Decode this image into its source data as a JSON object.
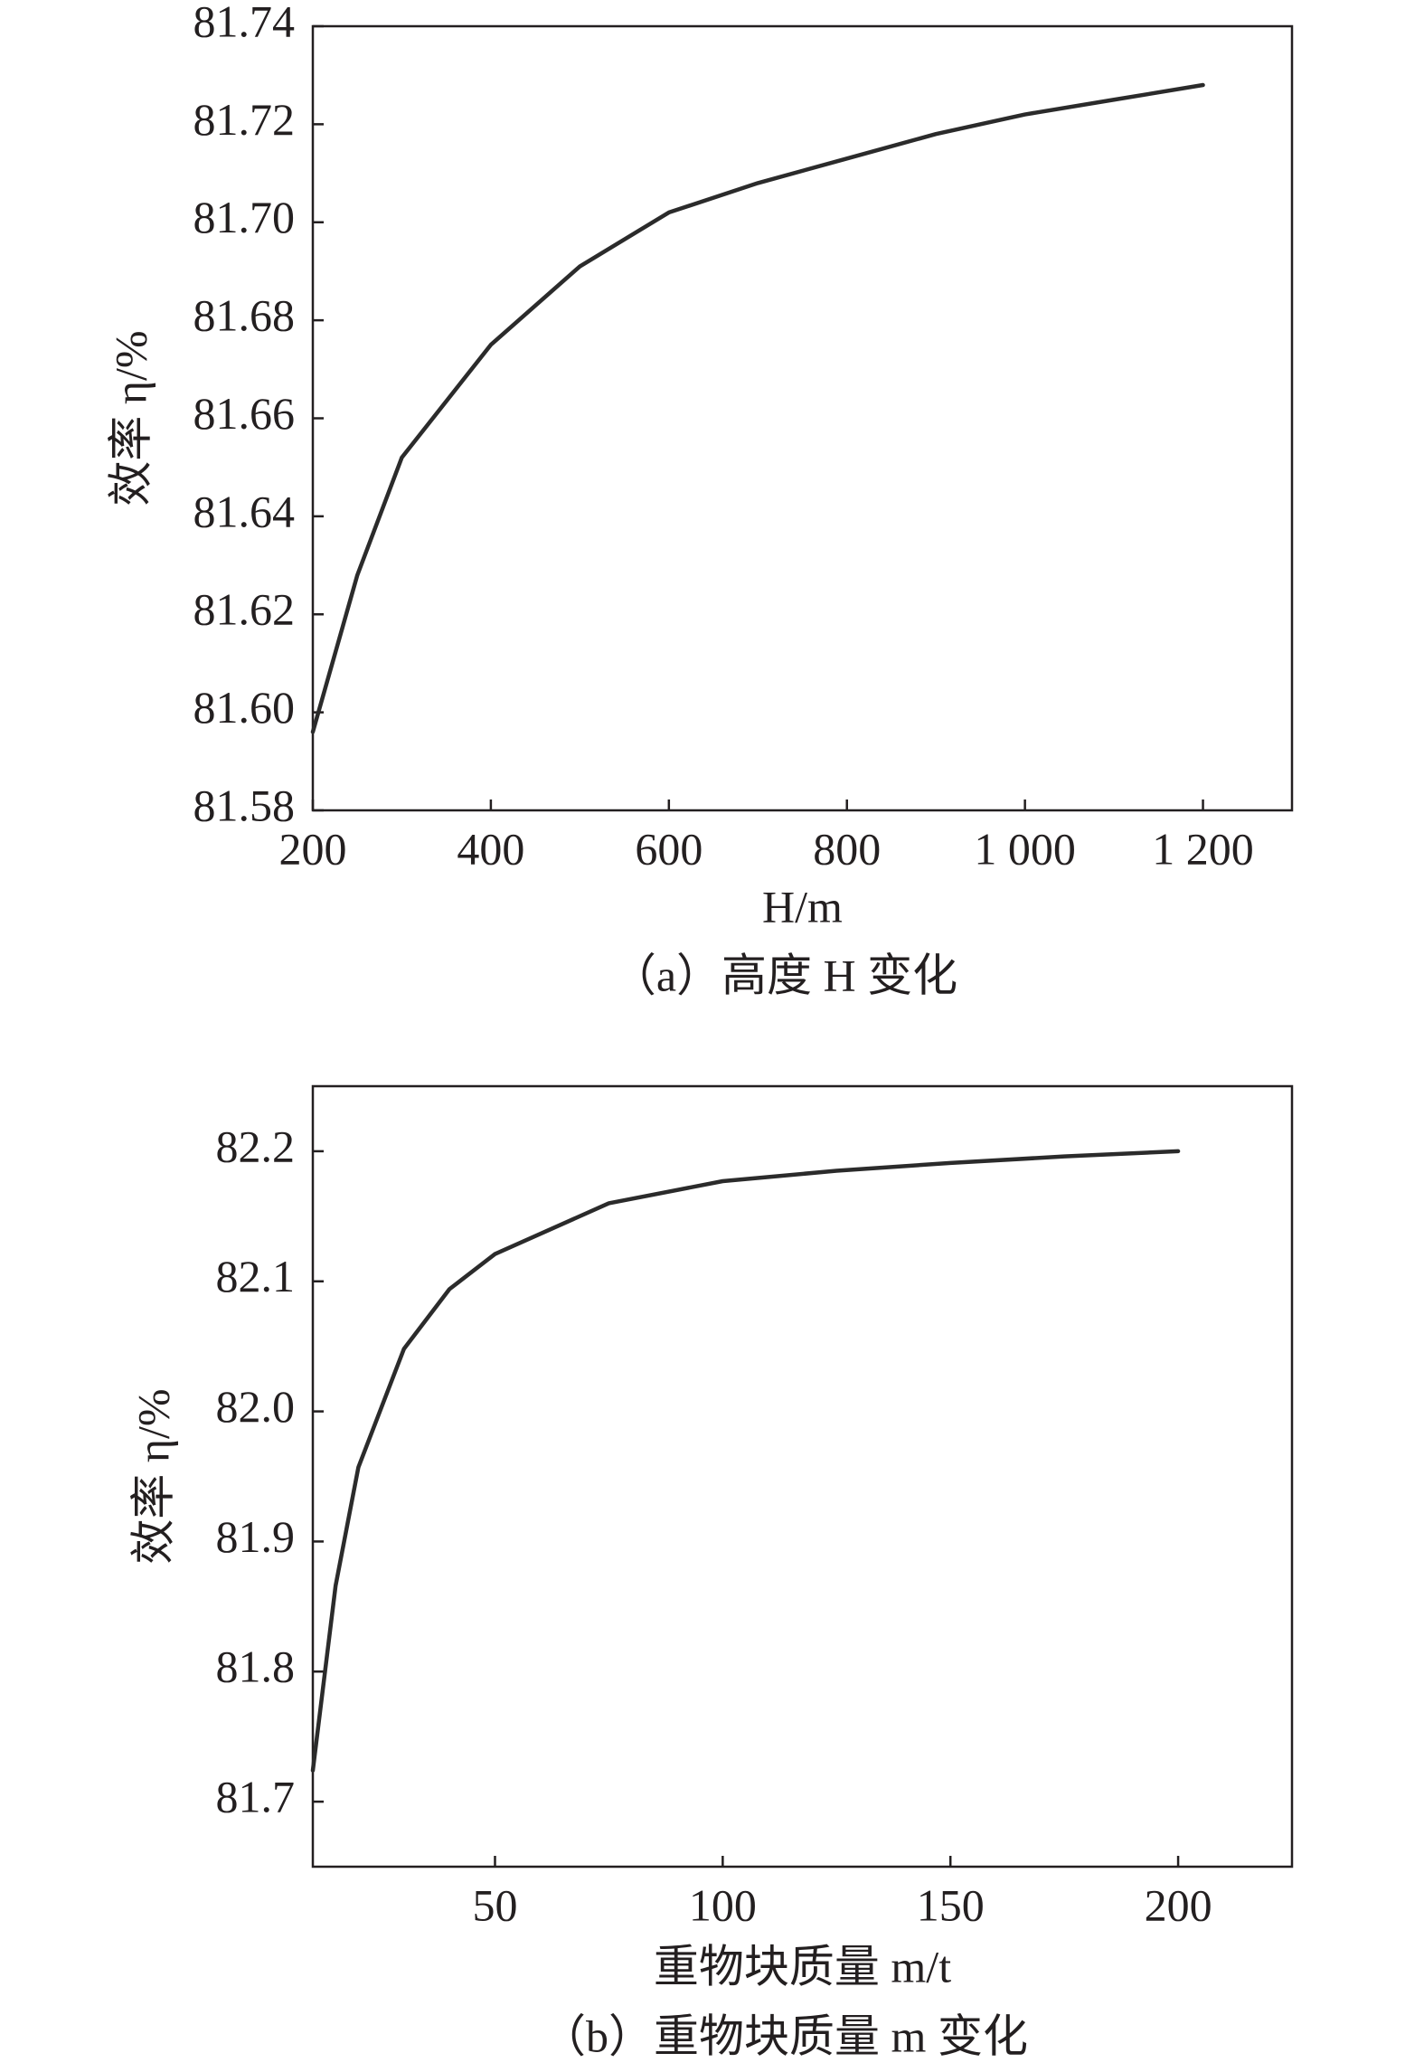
{
  "chart_data": [
    {
      "type": "line",
      "x_label": "H/m",
      "y_label": "效率 η/%",
      "caption": "（a）高度 H 变化",
      "x": [
        200,
        250,
        300,
        400,
        500,
        600,
        700,
        800,
        900,
        1000,
        1100,
        1200
      ],
      "series": [
        {
          "color": "#2b2b2b",
          "values": [
            81.596,
            81.628,
            81.652,
            81.675,
            81.691,
            81.702,
            81.708,
            81.713,
            81.718,
            81.722,
            81.725,
            81.728
          ]
        }
      ],
      "xlim": [
        200,
        1300
      ],
      "xticks": [
        200,
        400,
        600,
        800,
        {
          "value": 1000,
          "label": "1 000"
        },
        {
          "value": 1200,
          "label": "1 200"
        }
      ],
      "ylim": [
        81.58,
        81.74
      ],
      "yticks": [
        81.58,
        {
          "value": 81.6,
          "label": "81.60"
        },
        81.62,
        81.64,
        81.66,
        81.68,
        {
          "value": 81.7,
          "label": "81.70"
        },
        81.72,
        81.74
      ]
    },
    {
      "type": "line",
      "x_label": "重物块质量 m/t",
      "y_label": "效率 η/%",
      "caption": "（b）重物块质量 m 变化",
      "x": [
        10,
        15,
        20,
        30,
        40,
        50,
        75,
        100,
        125,
        150,
        175,
        200
      ],
      "series": [
        {
          "color": "#2b2b2b",
          "values": [
            81.724,
            81.866,
            81.957,
            82.048,
            82.094,
            82.121,
            82.16,
            82.177,
            82.185,
            82.191,
            82.196,
            82.2
          ]
        }
      ],
      "xlim": [
        10,
        225
      ],
      "xticks": [
        50,
        100,
        150,
        200
      ],
      "ylim": [
        81.65,
        82.25
      ],
      "yticks": [
        81.7,
        81.8,
        81.9,
        {
          "value": 82,
          "label": "82.0"
        },
        82.1,
        82.2
      ]
    }
  ]
}
